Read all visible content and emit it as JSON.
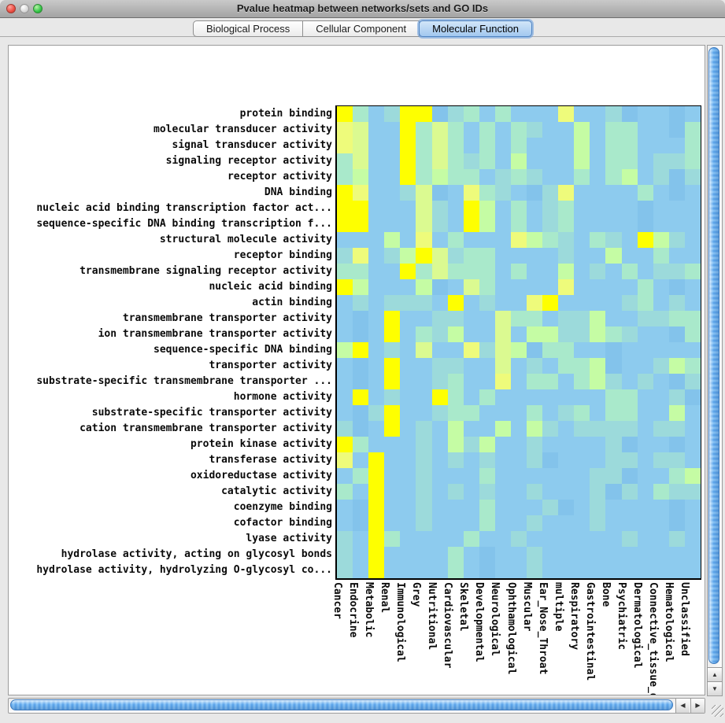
{
  "window": {
    "title": "Pvalue heatmap between networks/sets and GO IDs"
  },
  "tabs": [
    {
      "label": "Biological Process",
      "selected": false
    },
    {
      "label": "Cellular Component",
      "selected": false
    },
    {
      "label": "Molecular Function",
      "selected": true
    }
  ],
  "chart_data": {
    "type": "heatmap",
    "title": "Pvalue heatmap between networks/sets and GO IDs",
    "row_labels": [
      "protein binding",
      "molecular transducer activity",
      "signal transducer activity",
      "signaling receptor activity",
      "receptor activity",
      "DNA binding",
      "nucleic acid binding transcription factor act...",
      "sequence-specific DNA binding transcription f...",
      "structural molecule activity",
      "receptor binding",
      "transmembrane signaling receptor activity",
      "nucleic acid binding",
      "actin binding",
      "transmembrane transporter activity",
      "ion transmembrane transporter activity",
      "sequence-specific DNA binding",
      "transporter activity",
      "substrate-specific transmembrane transporter ...",
      "hormone activity",
      "substrate-specific transporter activity",
      "cation transmembrane transporter activity",
      "protein kinase activity",
      "transferase activity",
      "oxidoreductase activity",
      "catalytic activity",
      "coenzyme binding",
      "cofactor binding",
      "lyase activity",
      "hydrolase activity, acting on glycosyl bonds",
      "hydrolase activity, hydrolyzing O-glycosyl co..."
    ],
    "col_labels": [
      "Cancer",
      "Endocrine",
      "Metabolic",
      "Renal",
      "Immunological",
      "Grey",
      "Nutritional",
      "Cardiovascular",
      "Skeletal",
      "Developmental",
      "Neurological",
      "Ophthamological",
      "Muscular",
      "Ear_Nose_Throat",
      "multiple",
      "Respiratory",
      "Gastrointestinal",
      "Bone",
      "Psychiatric",
      "Dermatological",
      "Connective_tissue_disorder",
      "Hematological",
      "Unclassified"
    ],
    "palette": {
      "Y": "#feff00",
      "P": "#eefb7b",
      "L": "#dbfa91",
      "G": "#c5fca4",
      "A": "#a9e9cb",
      "T": "#9cdadb",
      "B": "#8dcbee",
      "D": "#83c3eb"
    },
    "cells": [
      "YABTYYDTABABBBPBBTDBBDB",
      "PLBBYALABABATBBGBAABBDA",
      "PLBBYALABABABBBGBAABBBA",
      "ALBBYALATABGBBBGBAABTTA",
      "AGBBYAGAABTATBBABAGBTDT",
      "YPBBTLDBPATBDTPBBBBABDB",
      "YYBBBLTBYGBABTABBBBDBBB",
      "YYBBBLTBYGBABTABBBBDBBB",
      "BBBGBPBABBBPGATBATBYGTB",
      "TPBTGYLTAABBBBTBBGBBABB",
      "AABBYALAAABABBGBTBABTTA",
      "YGBBBGDBLABBBBPBBBBABDB",
      "BTBTTTBYBTBBPYBBBBTABTB",
      "BDBYBBTTBBLAABTTGBBTTAA",
      "BDBYBATGBBLBGGTTGATBBDA",
      "GYBTBLBBPTLGDAABBDBBBBB",
      "BDBYBBTTBBLBTBAAGDBBTGA",
      "BDBYBBTABBPBAABAGTBTBDT",
      "BYBTBBYABABBBBBBBAABBTD",
      "BDTYBBTAABBBABTABAABBGB",
      "TDBYBTBGBBGBGTBTTTTBTTB",
      "YABBBTBGTGBBTBBBBTDBBDB",
      "PBYBBTBTBTBBTDBBBTTBTTB",
      "BAYBBTBBBABBBBBBTTDBBAG",
      "ABYBBTBTBTBBTBBBTDTBATT",
      "BDYBBTBBBABBBTDBTBBBBDB",
      "BDYBBTBBBABBTBBBTBBBBDB",
      "TBYABBBBABBTBBBBBBTBBTB",
      "TBYBBBBABDBBTBBBBBBBBBB",
      "TBYBBBBABDBBTBBBBBBBBBB"
    ]
  },
  "scrollbars": {
    "up_arrow": "▲",
    "down_arrow": "▼",
    "left_arrow": "◀",
    "right_arrow": "▶"
  }
}
